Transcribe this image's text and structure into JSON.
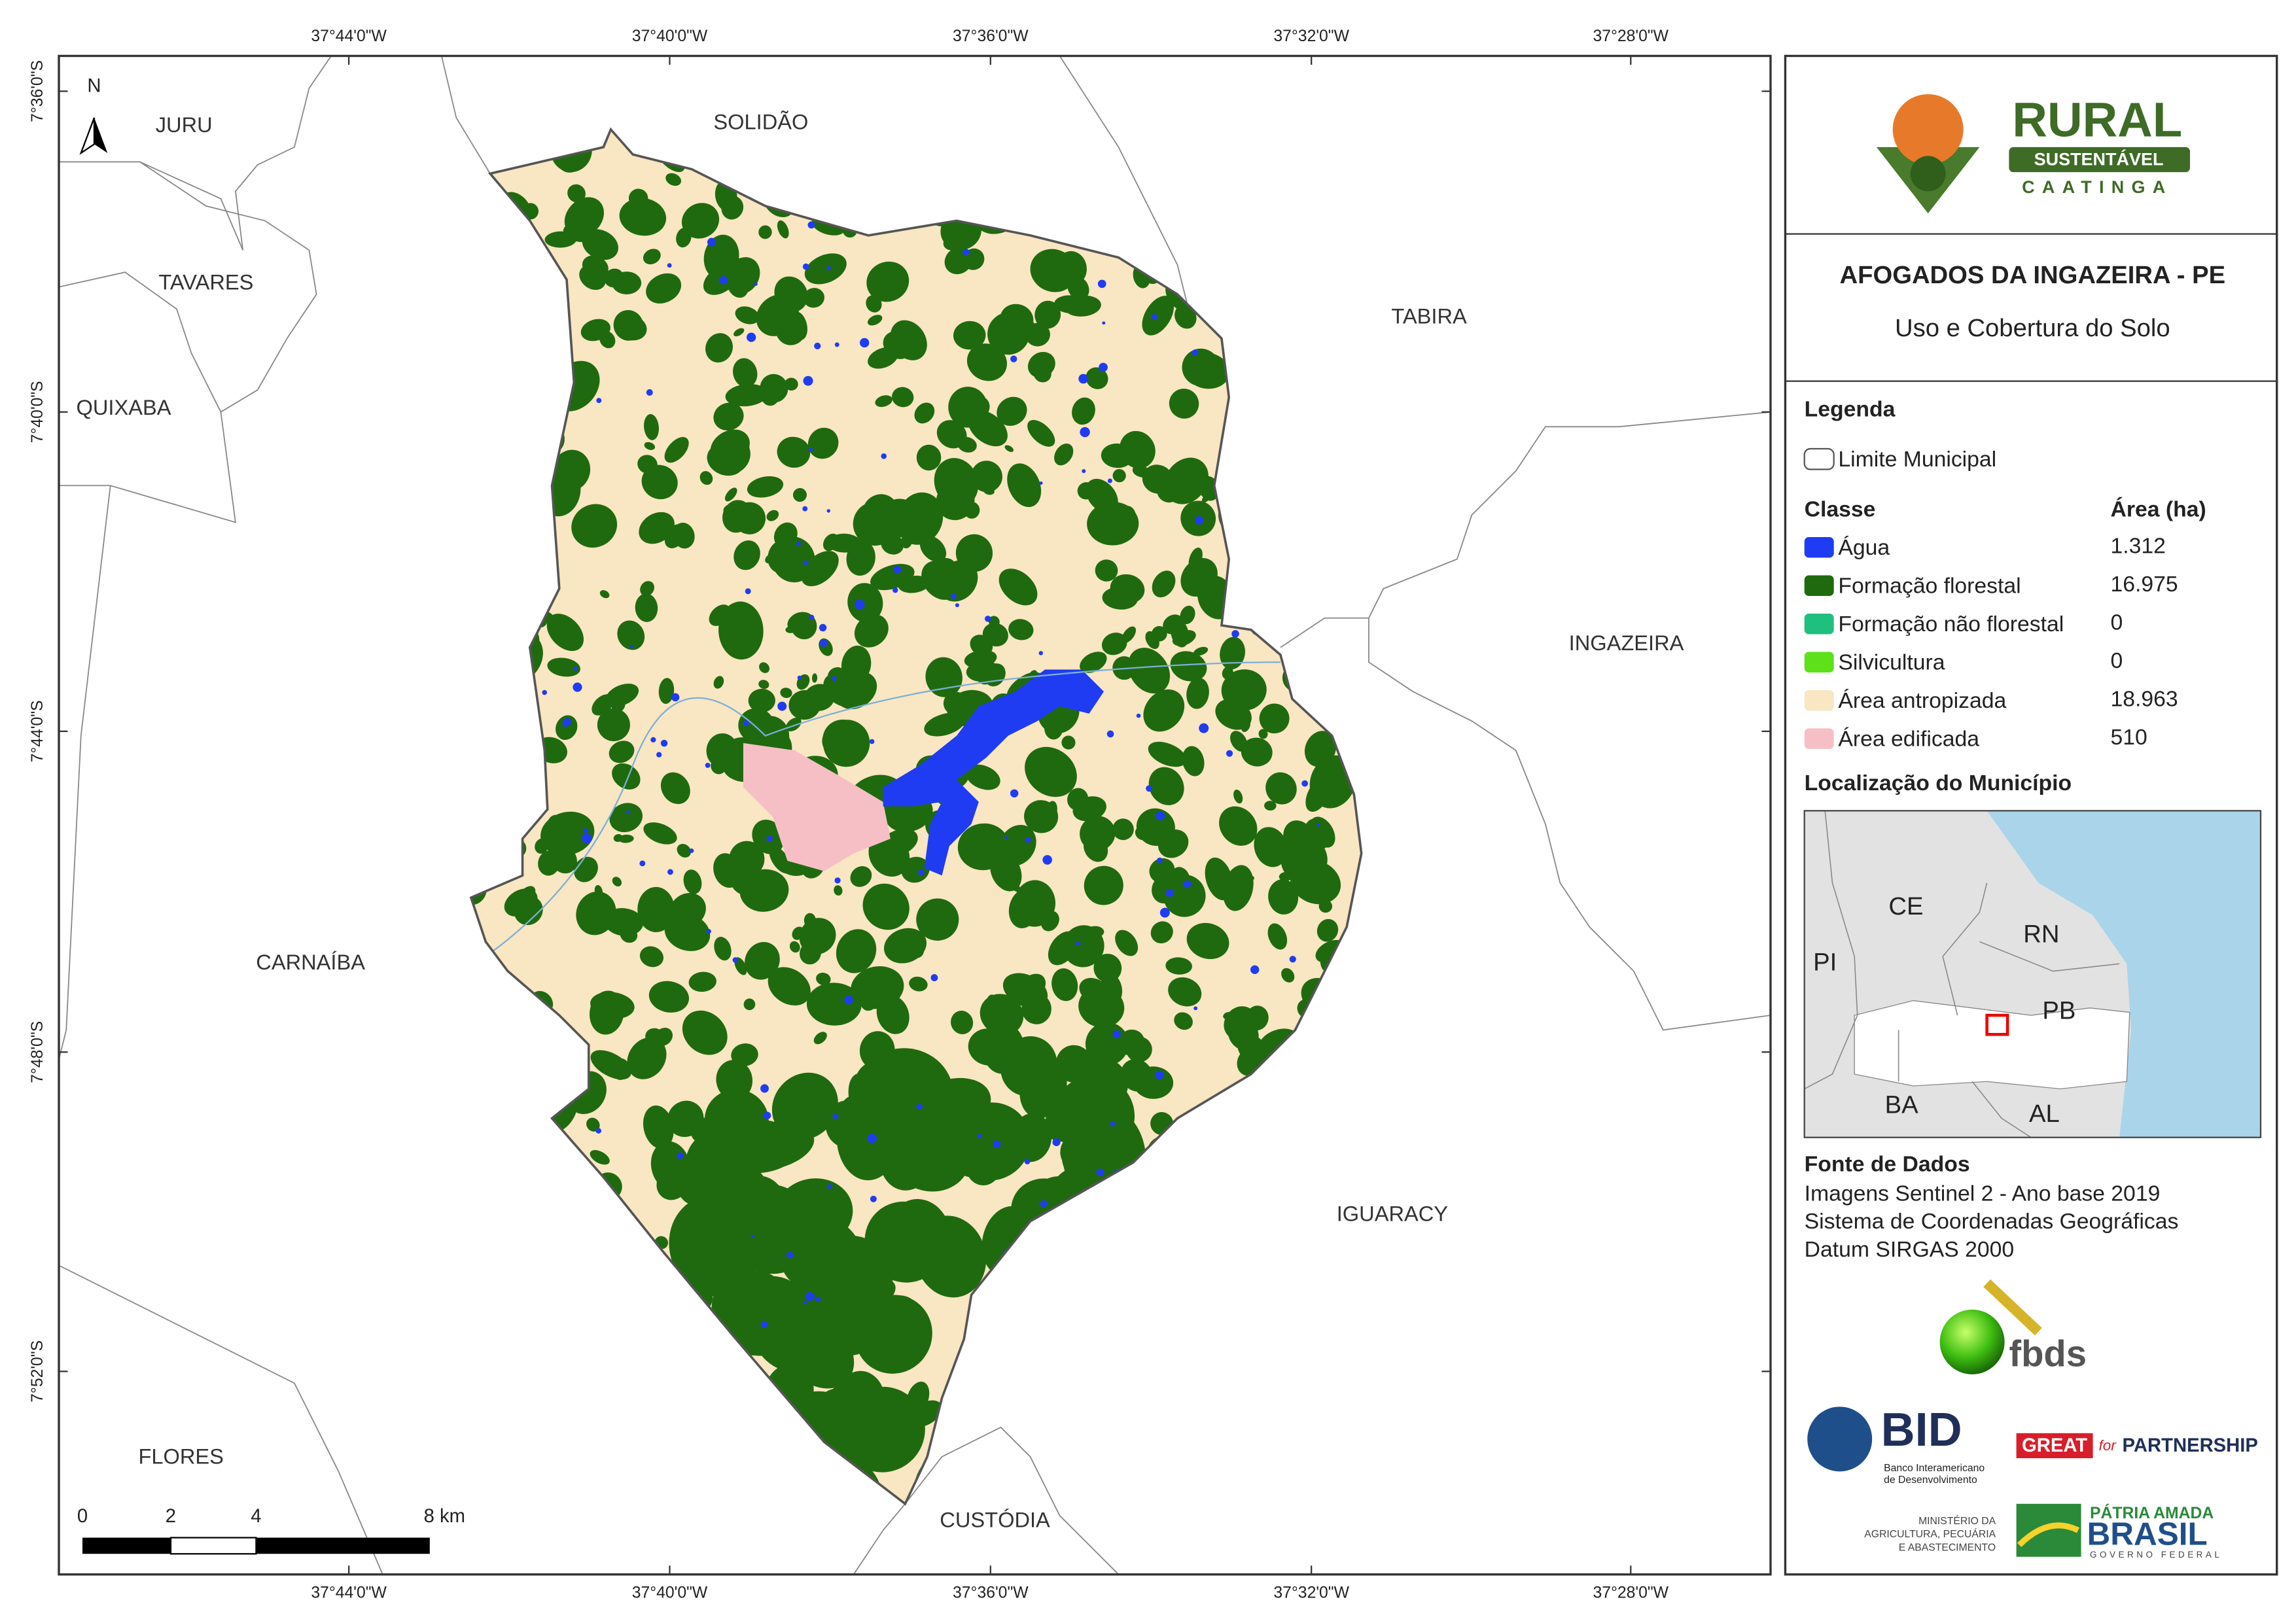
{
  "map": {
    "grid_labels": {
      "longitude": [
        "37°44'0\"W",
        "37°40'0\"W",
        "37°36'0\"W",
        "37°32'0\"W",
        "37°28'0\"W"
      ],
      "latitude": [
        "7°36'0\"S",
        "7°40'0\"S",
        "7°44'0\"S",
        "7°48'0\"S",
        "7°52'0\"S"
      ]
    },
    "places": [
      "JURU",
      "SOLIDÃO",
      "TAVARES",
      "QUIXABA",
      "TABIRA",
      "INGAZEIRA",
      "CARNAÍBA",
      "IGUARACY",
      "FLORES",
      "CUSTÓDIA"
    ],
    "north": "N",
    "scale_bar": [
      "0",
      "2",
      "4",
      "8 km"
    ]
  },
  "panel": {
    "logo": {
      "name": "RURAL",
      "badge": "SUSTENTÁVEL",
      "sub": "CAATINGA"
    },
    "title": "AFOGADOS DA INGAZEIRA - PE",
    "subtitle": "Uso e Cobertura do Solo",
    "legend": {
      "title": "Legenda",
      "boundary": "Limite Municipal",
      "class_header": "Classe",
      "area_header": "Área (ha)",
      "classes": [
        {
          "name": "Água",
          "color": "#1f3cf2",
          "area": "1.312"
        },
        {
          "name": "Formação florestal",
          "color": "#1f6a0f",
          "area": "16.975"
        },
        {
          "name": "Formação não florestal",
          "color": "#1fbf80",
          "area": "0"
        },
        {
          "name": "Silvicultura",
          "color": "#5ee01a",
          "area": "0"
        },
        {
          "name": "Área antropizada",
          "color": "#f9e6c2",
          "area": "18.963"
        },
        {
          "name": "Área edificada",
          "color": "#f6bfc6",
          "area": "510"
        }
      ]
    },
    "location": {
      "title": "Localização do Município",
      "states": [
        "CE",
        "RN",
        "PI",
        "PB",
        "BA",
        "AL"
      ]
    },
    "sources": {
      "title": "Fonte de Dados",
      "lines": [
        "Imagens Sentinel 2 - Ano base 2019",
        "Sistema de Coordenadas Geográficas",
        "Datum SIRGAS 2000"
      ]
    },
    "partners": {
      "fbds": "fbds",
      "bid": {
        "name": "BID",
        "lines": [
          "Banco Interamericano",
          "de Desenvolvimento"
        ]
      },
      "great": {
        "name": "GREAT",
        "for": "for",
        "partnership": "PARTNERSHIP"
      },
      "ministry": [
        "MINISTÉRIO DA",
        "AGRICULTURA, PECUÁRIA",
        "E ABASTECIMENTO"
      ],
      "brasil": {
        "motto": "PÁTRIA AMADA",
        "name": "BRASIL",
        "sub": "GOVERNO FEDERAL"
      }
    }
  }
}
